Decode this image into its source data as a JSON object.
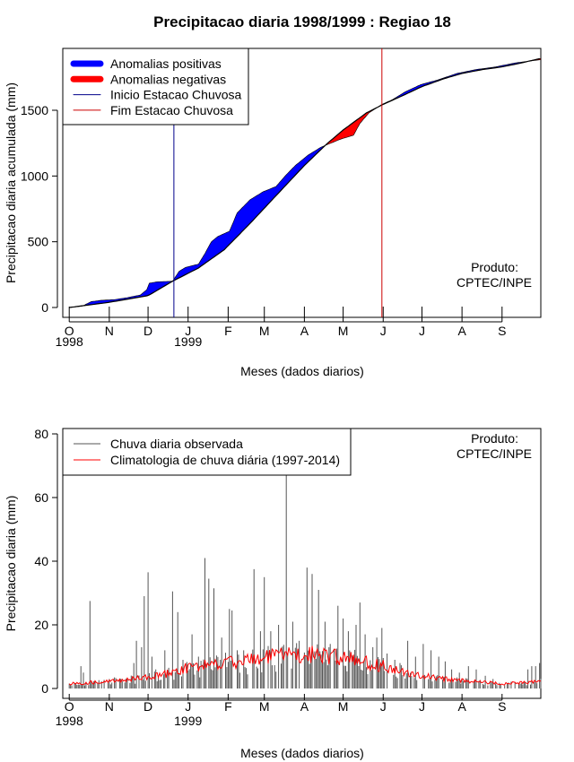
{
  "title": "Precipitacao diaria 1998/1999 : Regiao 18",
  "colors": {
    "positive": "#0000ff",
    "negative": "#ff0000",
    "observed": "#000000",
    "climatology": "#ff0000",
    "start_line": "#00008b",
    "end_line": "#cc0000"
  },
  "chart_data": [
    {
      "type": "area",
      "name": "accumulated",
      "title": "Precipitacao diaria 1998/1999 : Regiao 18",
      "xlabel": "Meses (dados diarios)",
      "ylabel": "Precipitacao diaria acumulada (mm)",
      "ylim": [
        0,
        1950
      ],
      "yticks": [
        0,
        500,
        1000,
        1500
      ],
      "xlim_days": [
        -5,
        365
      ],
      "month_ticks": [
        {
          "label": "O",
          "day": 0
        },
        {
          "label": "N",
          "day": 31
        },
        {
          "label": "D",
          "day": 61
        },
        {
          "label": "J",
          "day": 92
        },
        {
          "label": "F",
          "day": 123
        },
        {
          "label": "M",
          "day": 151
        },
        {
          "label": "A",
          "day": 182
        },
        {
          "label": "M",
          "day": 212
        },
        {
          "label": "J",
          "day": 243
        },
        {
          "label": "J",
          "day": 273
        },
        {
          "label": "A",
          "day": 304
        },
        {
          "label": "S",
          "day": 335
        }
      ],
      "year_labels": [
        {
          "label": "1998",
          "day": 0
        },
        {
          "label": "1999",
          "day": 92
        }
      ],
      "legend": {
        "position": "top-left",
        "entries": [
          "Anomalias positivas",
          "Anomalias negativas",
          "Inicio Estacao Chuvosa",
          "Fim Estacao Chuvosa"
        ]
      },
      "annotation": [
        "Produto:",
        "CPTEC/INPE"
      ],
      "rainy_season_start_day": 81,
      "rainy_season_end_day": 242,
      "observed_cumulative": [
        [
          0,
          0
        ],
        [
          10,
          10
        ],
        [
          17,
          45
        ],
        [
          25,
          55
        ],
        [
          35,
          60
        ],
        [
          45,
          75
        ],
        [
          55,
          95
        ],
        [
          60,
          135
        ],
        [
          62,
          185
        ],
        [
          68,
          195
        ],
        [
          80,
          200
        ],
        [
          85,
          275
        ],
        [
          90,
          305
        ],
        [
          100,
          330
        ],
        [
          105,
          410
        ],
        [
          110,
          500
        ],
        [
          115,
          540
        ],
        [
          124,
          580
        ],
        [
          130,
          720
        ],
        [
          140,
          820
        ],
        [
          150,
          880
        ],
        [
          160,
          920
        ],
        [
          168,
          1010
        ],
        [
          175,
          1080
        ],
        [
          185,
          1160
        ],
        [
          195,
          1220
        ],
        [
          210,
          1280
        ],
        [
          220,
          1310
        ],
        [
          225,
          1400
        ],
        [
          232,
          1480
        ],
        [
          242,
          1545
        ],
        [
          250,
          1580
        ],
        [
          260,
          1640
        ],
        [
          272,
          1695
        ],
        [
          285,
          1730
        ],
        [
          300,
          1780
        ],
        [
          315,
          1810
        ],
        [
          330,
          1830
        ],
        [
          345,
          1860
        ],
        [
          365,
          1885
        ]
      ],
      "climatology_cumulative": [
        [
          0,
          0
        ],
        [
          30,
          38
        ],
        [
          61,
          90
        ],
        [
          80,
          200
        ],
        [
          100,
          300
        ],
        [
          120,
          440
        ],
        [
          140,
          640
        ],
        [
          160,
          850
        ],
        [
          182,
          1080
        ],
        [
          200,
          1250
        ],
        [
          212,
          1350
        ],
        [
          230,
          1480
        ],
        [
          243,
          1545
        ],
        [
          260,
          1620
        ],
        [
          273,
          1680
        ],
        [
          290,
          1740
        ],
        [
          304,
          1780
        ],
        [
          320,
          1810
        ],
        [
          335,
          1830
        ],
        [
          350,
          1860
        ],
        [
          365,
          1895
        ]
      ]
    },
    {
      "type": "bar",
      "name": "daily",
      "xlabel": "Meses (dados diarios)",
      "ylabel": "Precipitacao diaria (mm)",
      "ylim": [
        0,
        82
      ],
      "yticks": [
        0,
        20,
        40,
        60,
        80
      ],
      "xlim_days": [
        -5,
        365
      ],
      "legend": {
        "position": "top-left",
        "entries": [
          "Chuva diaria observada",
          "Climatologia de chuva diária (1997-2014)"
        ]
      },
      "annotation": [
        "Produto:",
        "CPTEC/INPE"
      ],
      "observed_peaks": [
        [
          9,
          7
        ],
        [
          11,
          5
        ],
        [
          16,
          27.5
        ],
        [
          31,
          3
        ],
        [
          35,
          3.5
        ],
        [
          50,
          8
        ],
        [
          52,
          15
        ],
        [
          56,
          13
        ],
        [
          58,
          29
        ],
        [
          61,
          36.5
        ],
        [
          64,
          10
        ],
        [
          67,
          6
        ],
        [
          74,
          12
        ],
        [
          80,
          30.5
        ],
        [
          84,
          24
        ],
        [
          88,
          9
        ],
        [
          95,
          17
        ],
        [
          100,
          10
        ],
        [
          105,
          41
        ],
        [
          108,
          34.5
        ],
        [
          112,
          31.5
        ],
        [
          118,
          16
        ],
        [
          124,
          25
        ],
        [
          126,
          24.5
        ],
        [
          130,
          12
        ],
        [
          135,
          12
        ],
        [
          143,
          37.5
        ],
        [
          148,
          18
        ],
        [
          151,
          35
        ],
        [
          156,
          18
        ],
        [
          162,
          20
        ],
        [
          168,
          69
        ],
        [
          173,
          21
        ],
        [
          178,
          15
        ],
        [
          184,
          38
        ],
        [
          188,
          36
        ],
        [
          193,
          31
        ],
        [
          198,
          21
        ],
        [
          202,
          14
        ],
        [
          208,
          26
        ],
        [
          212,
          22
        ],
        [
          216,
          18
        ],
        [
          222,
          20
        ],
        [
          225,
          27
        ],
        [
          229,
          17
        ],
        [
          235,
          13
        ],
        [
          238,
          16
        ],
        [
          242,
          19
        ],
        [
          246,
          11
        ],
        [
          252,
          9
        ],
        [
          256,
          8
        ],
        [
          262,
          15
        ],
        [
          268,
          10
        ],
        [
          274,
          14
        ],
        [
          280,
          12
        ],
        [
          286,
          10
        ],
        [
          291,
          8.5
        ],
        [
          296,
          6
        ],
        [
          302,
          5
        ],
        [
          309,
          7
        ],
        [
          315,
          6
        ],
        [
          322,
          4
        ],
        [
          328,
          3
        ],
        [
          345,
          2
        ],
        [
          355,
          6
        ],
        [
          358,
          7
        ],
        [
          361,
          7
        ],
        [
          364,
          8
        ]
      ],
      "climatology_profile": [
        [
          0,
          1.5
        ],
        [
          15,
          1.8
        ],
        [
          30,
          2.2
        ],
        [
          45,
          2.8
        ],
        [
          61,
          3.5
        ],
        [
          75,
          4.5
        ],
        [
          92,
          6.5
        ],
        [
          110,
          7.5
        ],
        [
          130,
          8.5
        ],
        [
          150,
          9.5
        ],
        [
          165,
          10.5
        ],
        [
          180,
          11
        ],
        [
          195,
          10.5
        ],
        [
          212,
          9.5
        ],
        [
          225,
          8.5
        ],
        [
          243,
          7
        ],
        [
          255,
          5.5
        ],
        [
          273,
          4
        ],
        [
          290,
          3
        ],
        [
          304,
          2.5
        ],
        [
          320,
          2
        ],
        [
          335,
          1.5
        ],
        [
          350,
          1.8
        ],
        [
          365,
          2.2
        ]
      ]
    }
  ]
}
